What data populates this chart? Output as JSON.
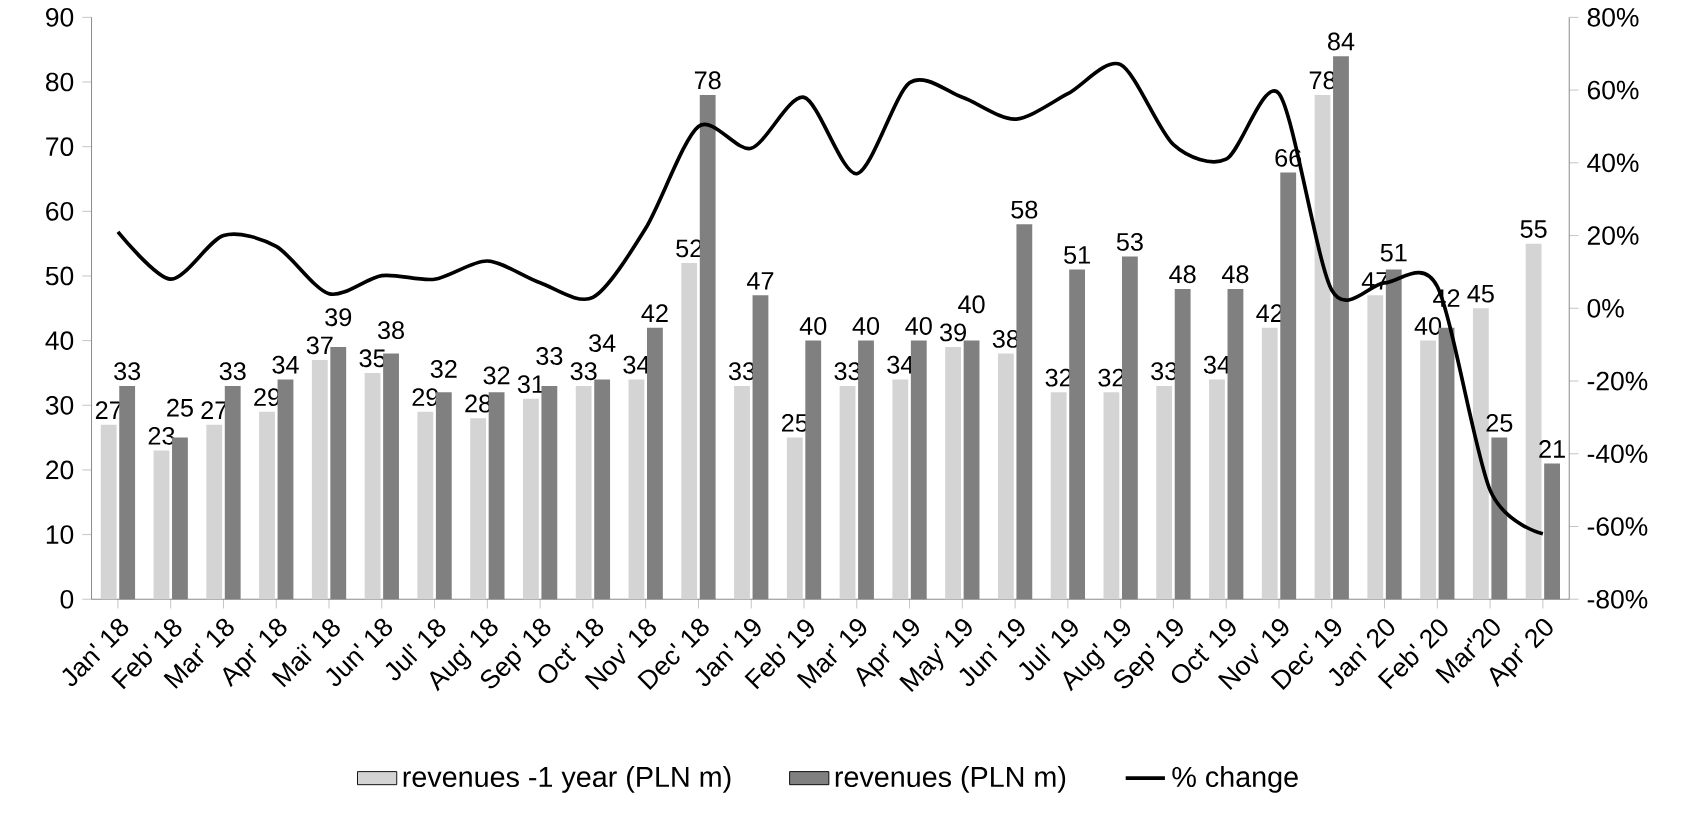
{
  "chart_data": {
    "type": "bar",
    "categories": [
      "Jan' 18",
      "Feb' 18",
      "Mar' 18",
      "Apr' 18",
      "Mai' 18",
      "Jun' 18",
      "Jul' 18",
      "Aug' 18",
      "Sep' 18",
      "Oct' 18",
      "Nov' 18",
      "Dec' 18",
      "Jan' 19",
      "Feb' 19",
      "Mar' 19",
      "Apr' 19",
      "May' 19",
      "Jun' 19",
      "Jul' 19",
      "Aug' 19",
      "Sep' 19",
      "Oct' 19",
      "Nov' 19",
      "Dec' 19",
      "Jan' 20",
      "Feb' 20",
      "Mar'20",
      "Apr' 20"
    ],
    "series": [
      {
        "name": "revenues -1 year (PLN m)",
        "type": "bar",
        "color": "#d4d4d4",
        "values": [
          27,
          23,
          27,
          29,
          37,
          35,
          29,
          28,
          31,
          33,
          34,
          52,
          33,
          25,
          33,
          34,
          39,
          38,
          32,
          32,
          33,
          34,
          42,
          78,
          47,
          40,
          45,
          55
        ],
        "value_labels": [
          "27",
          "23",
          "27",
          "29",
          "37",
          "35",
          "29",
          "28",
          "31",
          "33",
          "34",
          "52",
          "33",
          "25",
          "33",
          "34",
          "39",
          "38",
          "32",
          "32",
          "33",
          "34",
          "42",
          "78",
          "47",
          "40",
          "45",
          "55"
        ]
      },
      {
        "name": "revenues  (PLN m)",
        "type": "bar",
        "color": "#808080",
        "values": [
          33,
          25,
          33,
          34,
          39,
          38,
          32,
          32,
          33,
          34,
          42,
          78,
          47,
          40,
          40,
          40,
          40,
          58,
          51,
          53,
          48,
          48,
          66,
          84,
          51,
          42,
          25,
          21
        ],
        "value_labels": [
          "33",
          "25",
          "33",
          "34",
          "39",
          "38",
          "32",
          "32",
          "33",
          "34",
          "42",
          "78",
          "47",
          "40",
          "40",
          "40",
          "40",
          "58",
          "51",
          "53",
          "48",
          "48",
          "66",
          "84",
          "51",
          "42",
          "25",
          "21"
        ]
      },
      {
        "name": "% change",
        "type": "line",
        "axis": "y2",
        "color": "#000000",
        "values": [
          21,
          8,
          20,
          17,
          4,
          9,
          8,
          13,
          7,
          3,
          22,
          50,
          44,
          58,
          37,
          62,
          58,
          52,
          59,
          67,
          45,
          41,
          59,
          5,
          7,
          6,
          -50,
          -62
        ]
      }
    ],
    "ylim": [
      0,
      90
    ],
    "yticks": [
      0,
      10,
      20,
      30,
      40,
      50,
      60,
      70,
      80,
      90
    ],
    "y2lim": [
      -80,
      80
    ],
    "y2ticks": [
      {
        "value": -80,
        "label": "-80%"
      },
      {
        "value": -60,
        "label": "-60%"
      },
      {
        "value": -40,
        "label": "-40%"
      },
      {
        "value": -20,
        "label": "-20%"
      },
      {
        "value": 0,
        "label": "0%"
      },
      {
        "value": 20,
        "label": "20%"
      },
      {
        "value": 40,
        "label": "40%"
      },
      {
        "value": 60,
        "label": "60%"
      },
      {
        "value": 80,
        "label": "80%"
      }
    ],
    "legend": "bottom"
  }
}
